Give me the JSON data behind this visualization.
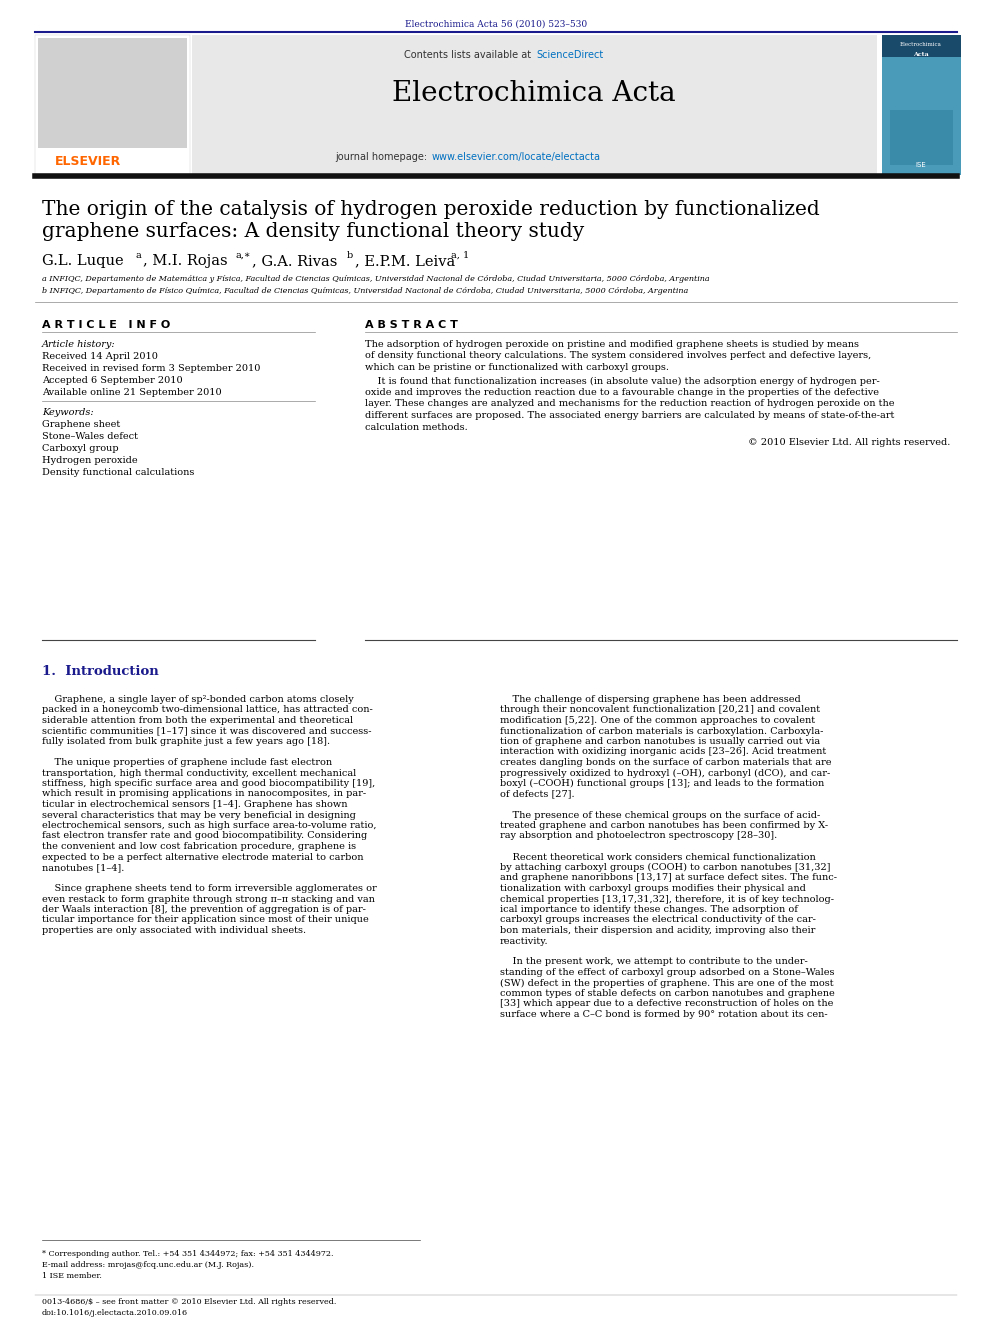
{
  "page_width": 9.92,
  "page_height": 13.23,
  "background_color": "#ffffff",
  "top_journal_ref": "Electrochimica Acta 56 (2010) 523–530",
  "top_journal_ref_color": "#1a1a8c",
  "journal_name": "Electrochimica Acta",
  "sciencedirect_color": "#0070c0",
  "homepage_url_color": "#0070c0",
  "header_bg_color": "#e8e8e8",
  "header_line_color": "#1a1a8c",
  "article_title_line1": "The origin of the catalysis of hydrogen peroxide reduction by functionalized",
  "article_title_line2": "graphene surfaces: A density functional theory study",
  "affiliation_a": "a INFIQC, Departamento de Matemática y Física, Facultad de Ciencias Químicas, Universidad Nacional de Córdoba, Ciudad Universitaria, 5000 Córdoba, Argentina",
  "affiliation_b": "b INFIQC, Departamento de Físico Química, Facultad de Ciencias Químicas, Universidad Nacional de Córdoba, Ciudad Universitaria, 5000 Córdoba, Argentina",
  "section_article_info": "A R T I C L E   I N F O",
  "section_abstract": "A B S T R A C T",
  "article_history_label": "Article history:",
  "received": "Received 14 April 2010",
  "received_revised": "Received in revised form 3 September 2010",
  "accepted": "Accepted 6 September 2010",
  "available": "Available online 21 September 2010",
  "keywords_label": "Keywords:",
  "keywords": [
    "Graphene sheet",
    "Stone–Wales defect",
    "Carboxyl group",
    "Hydrogen peroxide",
    "Density functional calculations"
  ],
  "copyright": "© 2010 Elsevier Ltd. All rights reserved.",
  "section1_title": "1.  Introduction",
  "footnote_corresponding": "* Corresponding author. Tel.: +54 351 4344972; fax: +54 351 4344972.",
  "footnote_email": "E-mail address: mrojas@fcq.unc.edu.ar (M.J. Rojas).",
  "footnote_ise": "1 ISE member.",
  "footer_left": "0013-4686/$ – see front matter © 2010 Elsevier Ltd. All rights reserved.",
  "footer_doi": "doi:10.1016/j.electacta.2010.09.016",
  "intro_title_color": "#1a1a8c",
  "link_color": "#0000cc"
}
